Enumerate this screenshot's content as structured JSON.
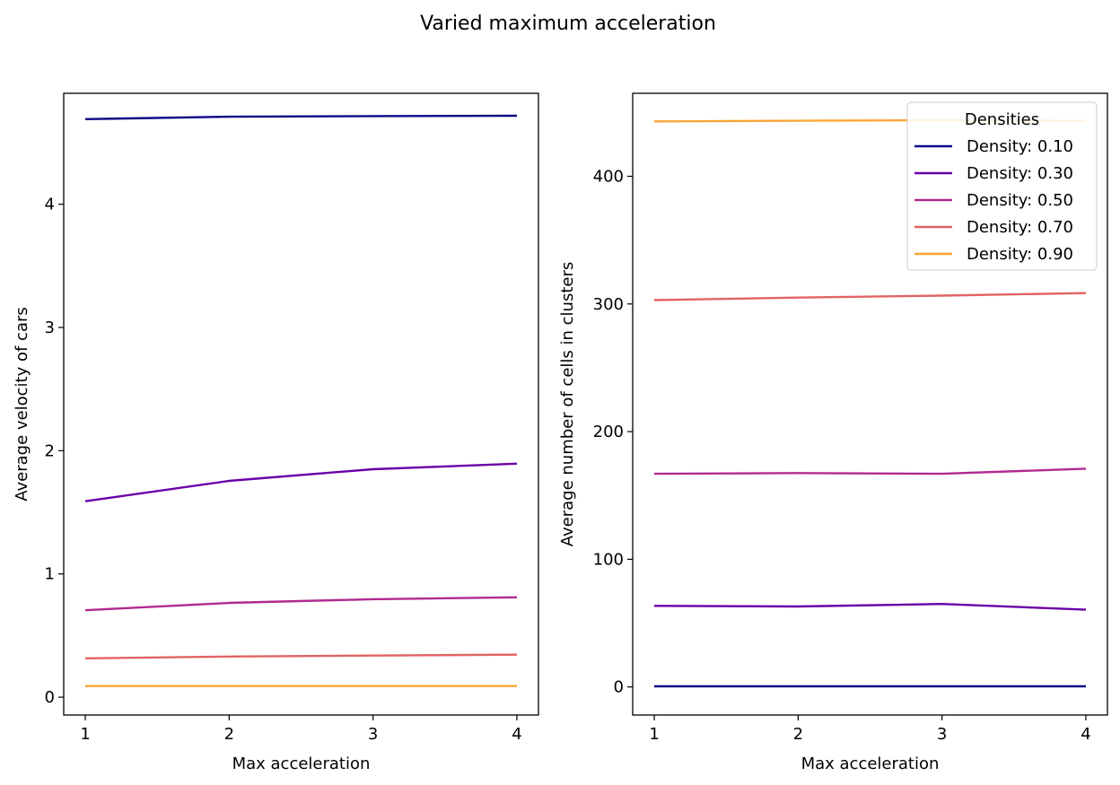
{
  "figure": {
    "suptitle": "Varied maximum acceleration"
  },
  "legend": {
    "title": "Densities"
  },
  "chart_data": [
    {
      "type": "line",
      "xlabel": "Max acceleration",
      "ylabel": "Average velocity of cars",
      "x": [
        1,
        2,
        3,
        4
      ],
      "xticks": [
        1,
        2,
        3,
        4
      ],
      "yticks": [
        0,
        1,
        2,
        3,
        4
      ],
      "xlim": [
        0.85,
        4.15
      ],
      "ylim": [
        -0.145,
        4.9
      ],
      "grid": false,
      "series": [
        {
          "name": "Density: 0.10",
          "color": "#0d0887",
          "values": [
            4.69,
            4.71,
            4.715,
            4.718
          ]
        },
        {
          "name": "Density: 0.30",
          "color": "#6a00a8",
          "values": [
            1.59,
            1.755,
            1.85,
            1.895
          ]
        },
        {
          "name": "Density: 0.50",
          "color": "#b12a90",
          "values": [
            0.705,
            0.765,
            0.795,
            0.81
          ]
        },
        {
          "name": "Density: 0.70",
          "color": "#e16462",
          "values": [
            0.315,
            0.33,
            0.338,
            0.345
          ]
        },
        {
          "name": "Density: 0.90",
          "color": "#fca636",
          "values": [
            0.09,
            0.09,
            0.09,
            0.09
          ]
        }
      ]
    },
    {
      "type": "line",
      "xlabel": "Max acceleration",
      "ylabel": "Average number of cells in clusters",
      "x": [
        1,
        2,
        3,
        4
      ],
      "xticks": [
        1,
        2,
        3,
        4
      ],
      "yticks": [
        0,
        100,
        200,
        300,
        400
      ],
      "xlim": [
        0.85,
        4.15
      ],
      "ylim": [
        -22,
        465
      ],
      "grid": false,
      "legend_position": "top-right",
      "series": [
        {
          "name": "Density: 0.10",
          "color": "#0d0887",
          "values": [
            0.5,
            0.5,
            0.5,
            0.5
          ]
        },
        {
          "name": "Density: 0.30",
          "color": "#6a00a8",
          "values": [
            63.5,
            63,
            65,
            60.5
          ]
        },
        {
          "name": "Density: 0.50",
          "color": "#b12a90",
          "values": [
            167,
            167.5,
            167,
            171
          ]
        },
        {
          "name": "Density: 0.70",
          "color": "#e16462",
          "values": [
            303,
            305,
            306.5,
            308.5
          ]
        },
        {
          "name": "Density: 0.90",
          "color": "#fca636",
          "values": [
            443,
            443.5,
            444,
            443.5
          ]
        }
      ]
    }
  ]
}
